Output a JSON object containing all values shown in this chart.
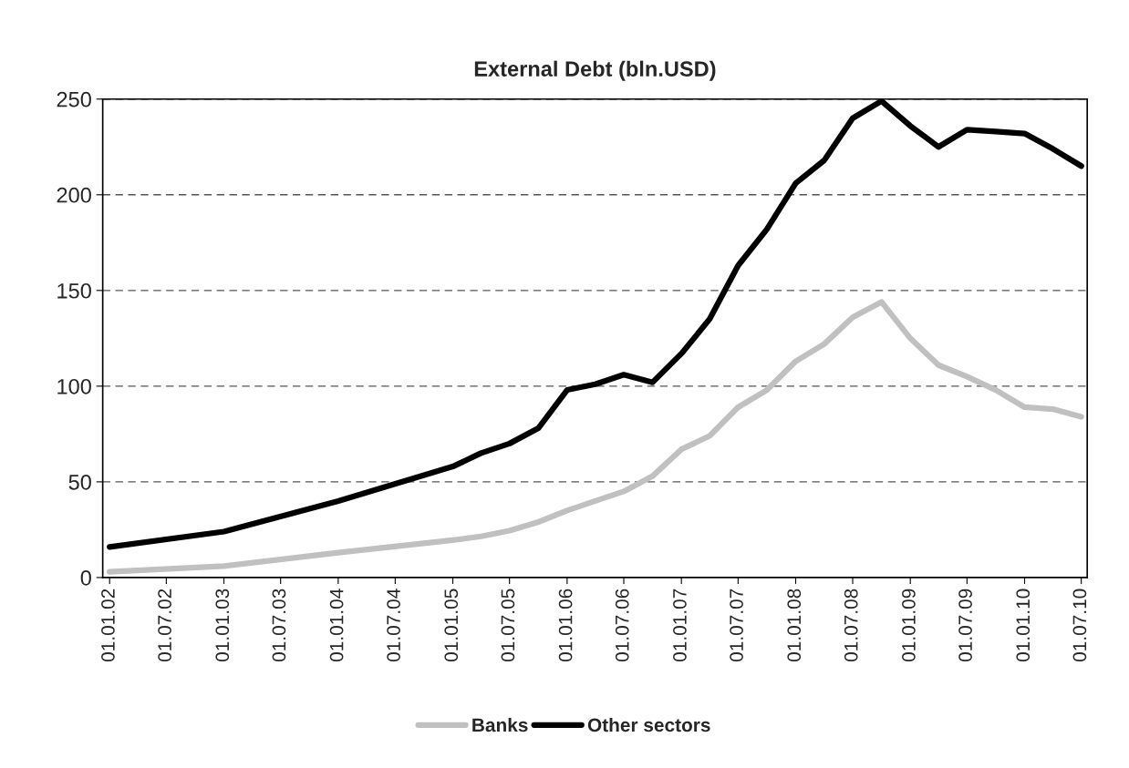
{
  "chart_data": {
    "type": "line",
    "title": "External Debt (bln.USD)",
    "x": [
      "2002-01-01",
      "2003-01-01",
      "2004-01-01",
      "2005-01-01",
      "2005-04-01",
      "2005-07-01",
      "2005-10-01",
      "2006-01-01",
      "2006-04-01",
      "2006-07-01",
      "2006-10-01",
      "2007-01-01",
      "2007-04-01",
      "2007-07-01",
      "2007-10-01",
      "2008-01-01",
      "2008-04-01",
      "2008-07-01",
      "2008-10-01",
      "2009-01-01",
      "2009-04-01",
      "2009-07-01",
      "2009-10-01",
      "2010-01-01",
      "2010-04-01",
      "2010-07-01"
    ],
    "series": [
      {
        "name": "Banks",
        "color": "#c0c0c0",
        "values": [
          3,
          6,
          13,
          19.5,
          21.5,
          24.5,
          29,
          35,
          40,
          45,
          53,
          67,
          74,
          89,
          98,
          113,
          122,
          136,
          144,
          125,
          111,
          105,
          98,
          89,
          88,
          84
        ]
      },
      {
        "name": "Other sectors",
        "color": "#000000",
        "values": [
          16,
          24,
          40,
          58,
          65,
          70,
          78,
          98,
          101,
          106,
          102,
          117,
          135,
          163,
          182,
          206,
          218,
          240,
          249,
          236,
          225,
          234,
          233,
          232,
          224,
          215
        ]
      }
    ],
    "xlim": [
      "2001-12-10",
      "2010-07-20"
    ],
    "xticks": [
      {
        "value": "2002-01-01",
        "label": "01.01.02"
      },
      {
        "value": "2002-07-01",
        "label": "01.07.02"
      },
      {
        "value": "2003-01-01",
        "label": "01.01.03"
      },
      {
        "value": "2003-07-01",
        "label": "01.07.03"
      },
      {
        "value": "2004-01-01",
        "label": "01.01.04"
      },
      {
        "value": "2004-07-01",
        "label": "01.07.04"
      },
      {
        "value": "2005-01-01",
        "label": "01.01.05"
      },
      {
        "value": "2005-07-01",
        "label": "01.07.05"
      },
      {
        "value": "2006-01-01",
        "label": "01.01.06"
      },
      {
        "value": "2006-07-01",
        "label": "01.07.06"
      },
      {
        "value": "2007-01-01",
        "label": "01.01.07"
      },
      {
        "value": "2007-07-01",
        "label": "01.07.07"
      },
      {
        "value": "2008-01-01",
        "label": "01.01.08"
      },
      {
        "value": "2008-07-01",
        "label": "01.07.08"
      },
      {
        "value": "2009-01-01",
        "label": "01.01.09"
      },
      {
        "value": "2009-07-01",
        "label": "01.07.09"
      },
      {
        "value": "2010-01-01",
        "label": "01.01.10"
      },
      {
        "value": "2010-07-01",
        "label": "01.07.10"
      }
    ],
    "ylim": [
      0,
      250
    ],
    "yticks": [
      0,
      50,
      100,
      150,
      200,
      250
    ],
    "grid": "y",
    "legend": "bottom",
    "marker": "none",
    "line_style": "solid"
  }
}
